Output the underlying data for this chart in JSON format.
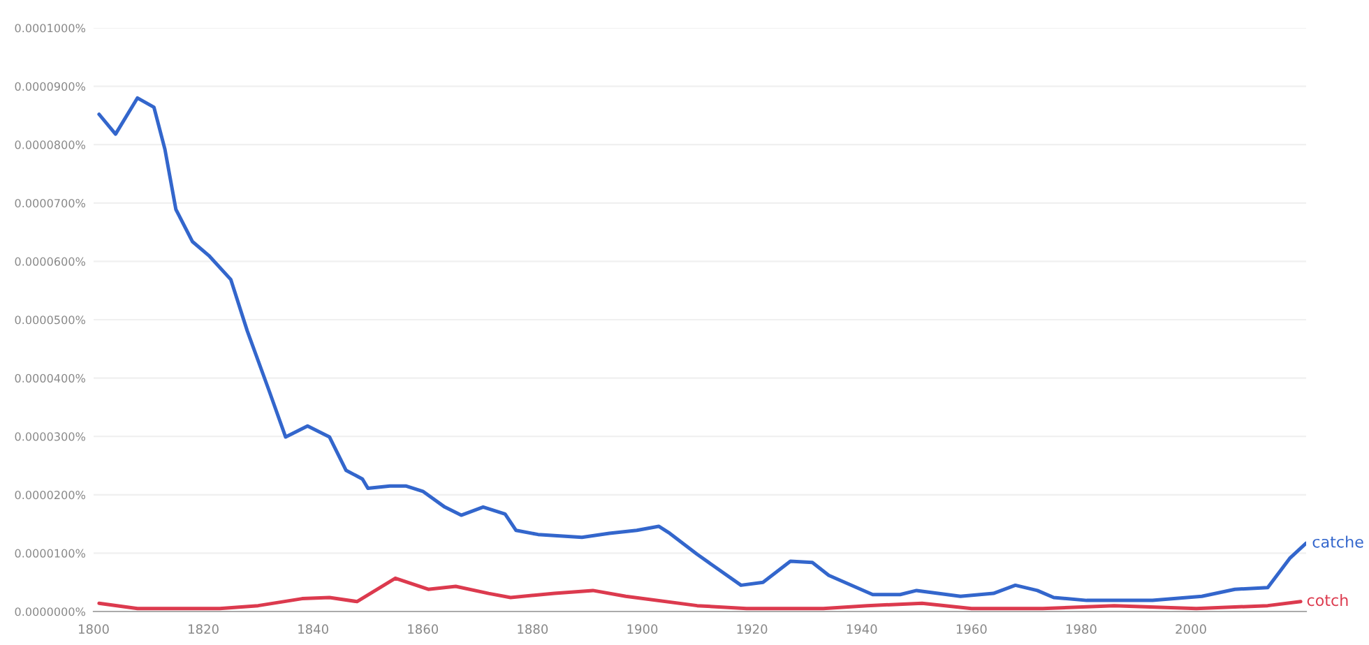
{
  "chart_data": {
    "type": "line",
    "xlim": [
      1800,
      2021
    ],
    "xticks": [
      1800,
      1820,
      1840,
      1860,
      1880,
      1900,
      1920,
      1940,
      1960,
      1980,
      2000
    ],
    "ylim": [
      0,
      0.0001
    ],
    "yticks": [
      {
        "value": 0,
        "label": "0.0000000%"
      },
      {
        "value": 1e-05,
        "label": "0.0000100%"
      },
      {
        "value": 2e-05,
        "label": "0.0000200%"
      },
      {
        "value": 3e-05,
        "label": "0.0000300%"
      },
      {
        "value": 4e-05,
        "label": "0.0000400%"
      },
      {
        "value": 5e-05,
        "label": "0.0000500%"
      },
      {
        "value": 6e-05,
        "label": "0.0000600%"
      },
      {
        "value": 7e-05,
        "label": "0.0000700%"
      },
      {
        "value": 8e-05,
        "label": "0.0000800%"
      },
      {
        "value": 9e-05,
        "label": "0.0000900%"
      },
      {
        "value": 0.0001,
        "label": "0.0001000%"
      }
    ],
    "grid": "y",
    "legend": false,
    "marker": "none",
    "line_style": "solid",
    "series": [
      {
        "name": "catche",
        "color": "#3366cc",
        "x": [
          1801,
          1804,
          1808,
          1811,
          1813,
          1815,
          1818,
          1821,
          1825,
          1828,
          1832,
          1835,
          1839,
          1843,
          1846,
          1849,
          1850,
          1854,
          1857,
          1860,
          1864,
          1867,
          1871,
          1875,
          1877,
          1881,
          1889,
          1894,
          1899,
          1903,
          1905,
          1910,
          1918,
          1922,
          1927,
          1931,
          1934,
          1942,
          1947,
          1950,
          1958,
          1964,
          1968,
          1972,
          1975,
          1981,
          1993,
          2002,
          2008,
          2014,
          2018,
          2021
        ],
        "values": [
          8.52e-05,
          8.18e-05,
          8.8e-05,
          8.64e-05,
          7.92e-05,
          6.89e-05,
          6.34e-05,
          6.1e-05,
          5.69e-05,
          4.81e-05,
          3.78e-05,
          2.99e-05,
          3.18e-05,
          2.99e-05,
          2.42e-05,
          2.27e-05,
          2.11e-05,
          2.15e-05,
          2.15e-05,
          2.06e-05,
          1.79e-05,
          1.65e-05,
          1.79e-05,
          1.67e-05,
          1.39e-05,
          1.32e-05,
          1.27e-05,
          1.34e-05,
          1.39e-05,
          1.46e-05,
          1.34e-05,
          9.8e-06,
          4.5e-06,
          5e-06,
          8.6e-06,
          8.4e-06,
          6.2e-06,
          2.9e-06,
          2.9e-06,
          3.6e-06,
          2.6e-06,
          3.1e-06,
          4.5e-06,
          3.6e-06,
          2.4e-06,
          1.9e-06,
          1.9e-06,
          2.6e-06,
          3.8e-06,
          4.1e-06,
          9.1e-06,
          1.17e-05
        ]
      },
      {
        "name": "cotch",
        "color": "#dc3a4e",
        "x": [
          1801,
          1808,
          1815,
          1823,
          1830,
          1838,
          1843,
          1848,
          1855,
          1861,
          1866,
          1872,
          1876,
          1884,
          1891,
          1897,
          1910,
          1919,
          1933,
          1941,
          1951,
          1960,
          1973,
          1986,
          2001,
          2014,
          2020
        ],
        "values": [
          1.4e-06,
          5e-07,
          5e-07,
          5e-07,
          1e-06,
          2.2e-06,
          2.4e-06,
          1.7e-06,
          5.7e-06,
          3.8e-06,
          4.3e-06,
          3.1e-06,
          2.4e-06,
          3.1e-06,
          3.6e-06,
          2.6e-06,
          1e-06,
          5e-07,
          5e-07,
          1e-06,
          1.4e-06,
          5e-07,
          5e-07,
          1e-06,
          5e-07,
          1e-06,
          1.7e-06
        ]
      }
    ]
  }
}
